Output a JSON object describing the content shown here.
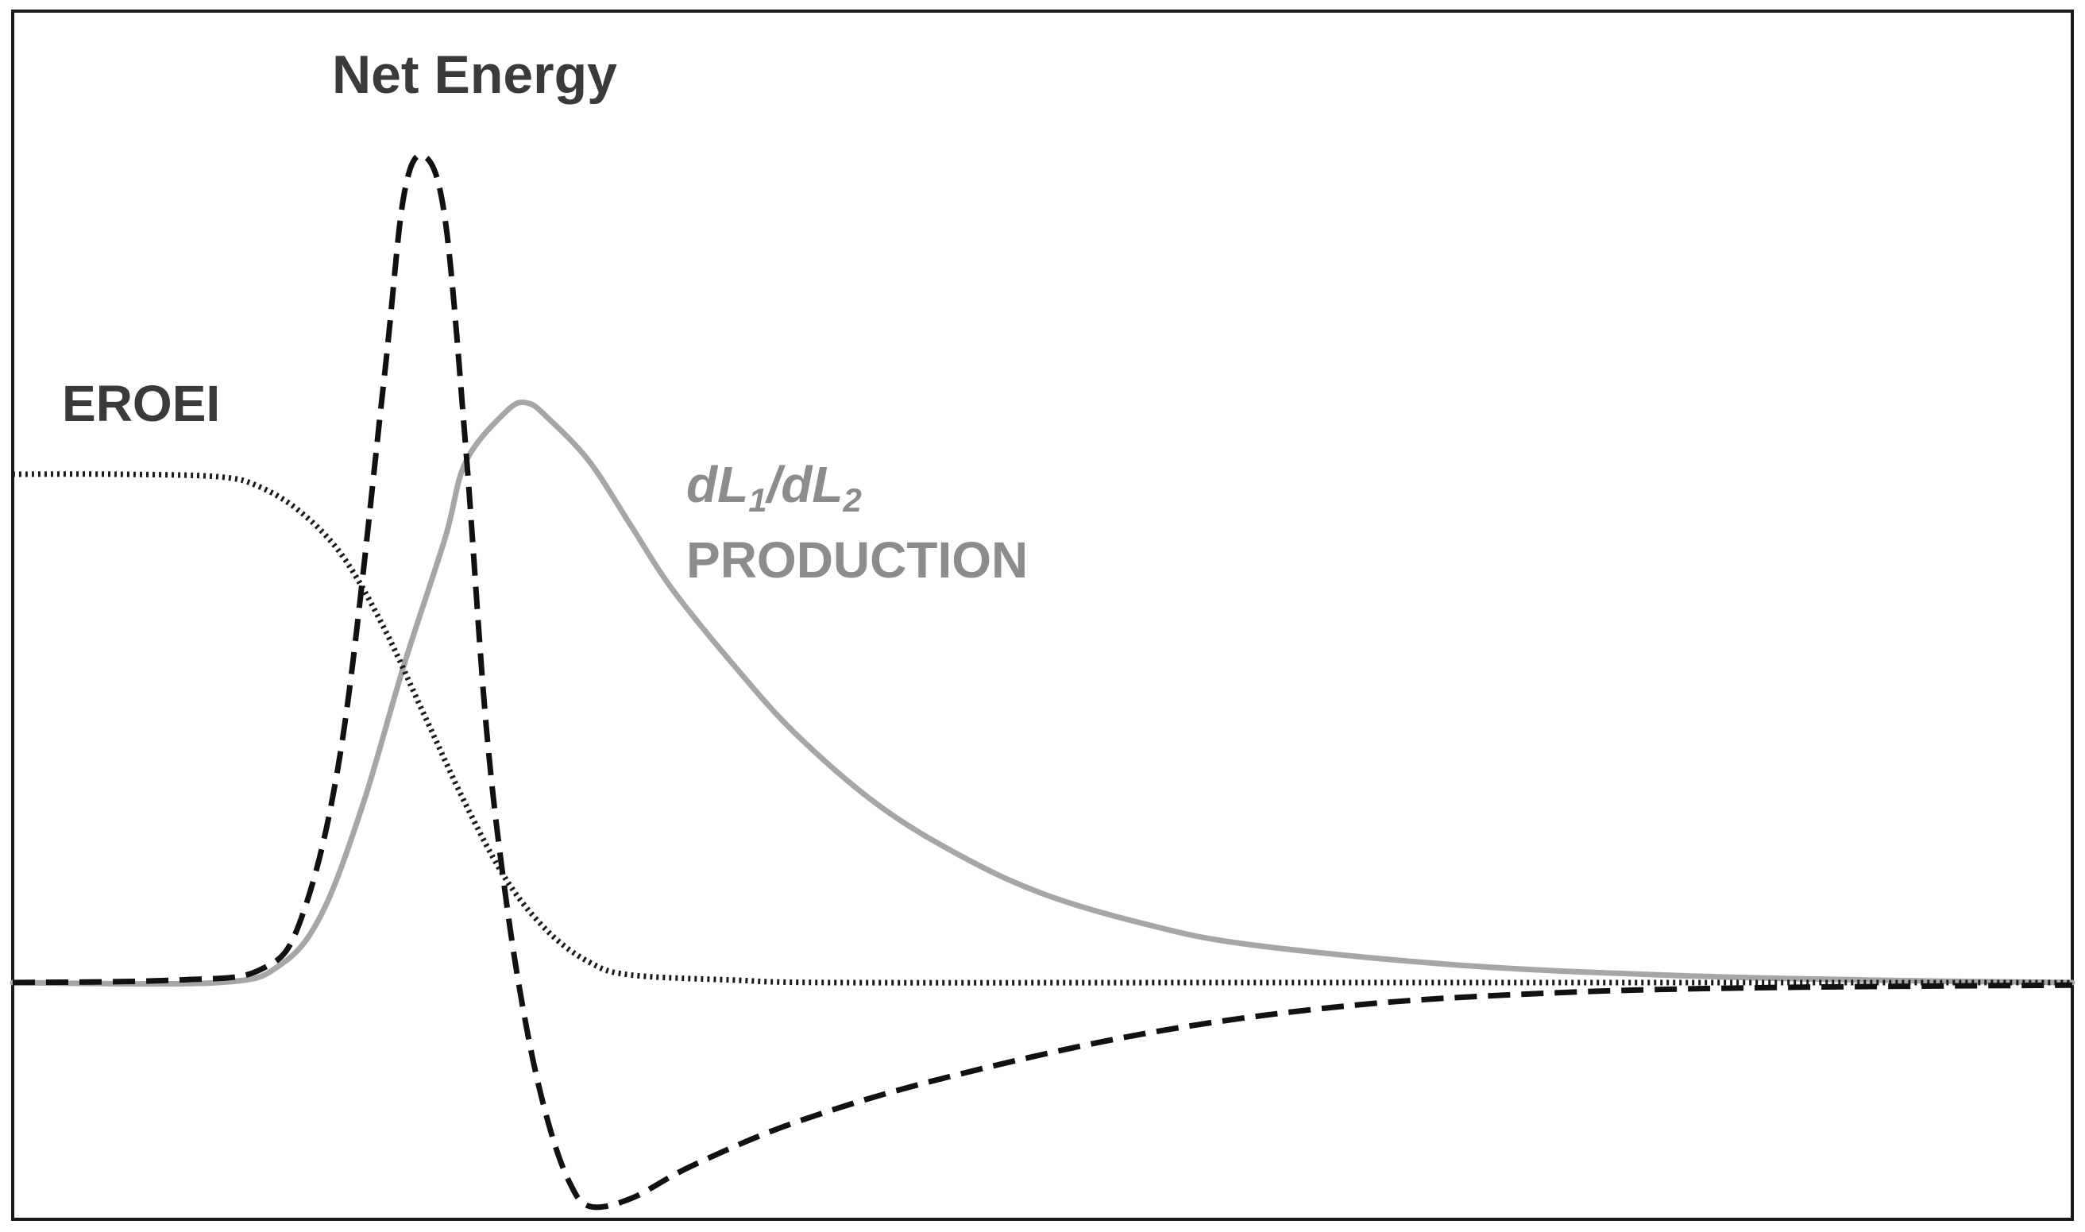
{
  "chart_data": {
    "type": "line",
    "title": "",
    "xlabel": "",
    "ylabel": "",
    "grid": false,
    "legend": "none",
    "axes_ticks": false,
    "xlim": [
      0,
      100
    ],
    "ylim": [
      -1,
      3
    ],
    "series": [
      {
        "name": "EROEI",
        "style": "dotted",
        "color": "#1a1a1a",
        "x": [
          0,
          5,
          10,
          12,
          14,
          16,
          18,
          20,
          22,
          24,
          26,
          28,
          30,
          35,
          40,
          60,
          80,
          100
        ],
        "y": [
          2.0,
          2.0,
          1.99,
          1.95,
          1.85,
          1.68,
          1.4,
          1.05,
          0.7,
          0.4,
          0.2,
          0.08,
          0.03,
          0.01,
          0.0,
          0.0,
          0.0,
          0.0
        ]
      },
      {
        "name": "Net Energy",
        "style": "dashed",
        "color": "#111111",
        "x": [
          0,
          8,
          12,
          14,
          16,
          18,
          19,
          20,
          21,
          22,
          23,
          24,
          25,
          26,
          27,
          28,
          30,
          33,
          38,
          45,
          55,
          65,
          75,
          85,
          100
        ],
        "y": [
          0.0,
          0.01,
          0.05,
          0.25,
          0.95,
          2.35,
          3.1,
          3.25,
          3.0,
          2.1,
          1.0,
          0.3,
          -0.2,
          -0.55,
          -0.78,
          -0.88,
          -0.85,
          -0.72,
          -0.55,
          -0.38,
          -0.2,
          -0.09,
          -0.04,
          -0.02,
          -0.01
        ]
      },
      {
        "name": "dL1/dL2 PRODUCTION",
        "style": "solid",
        "color": "#a6a6a6",
        "x": [
          0,
          10,
          13,
          15,
          17,
          19,
          21,
          22,
          24,
          25,
          26,
          28,
          30,
          32,
          35,
          38,
          42,
          46,
          50,
          55,
          60,
          70,
          80,
          90,
          100
        ],
        "y": [
          0.0,
          0.0,
          0.07,
          0.27,
          0.7,
          1.25,
          1.75,
          2.05,
          2.25,
          2.28,
          2.22,
          2.05,
          1.8,
          1.55,
          1.25,
          0.98,
          0.7,
          0.5,
          0.35,
          0.23,
          0.15,
          0.07,
          0.03,
          0.01,
          0.0
        ]
      }
    ],
    "annotations": {
      "net_energy": "Net Energy",
      "eroei": "EROEI",
      "dl_prefix_1": "dL",
      "dl_sub_1": "1",
      "dl_slash": "/dL",
      "dl_sub_2": "2",
      "production": "PRODUCTION"
    }
  }
}
